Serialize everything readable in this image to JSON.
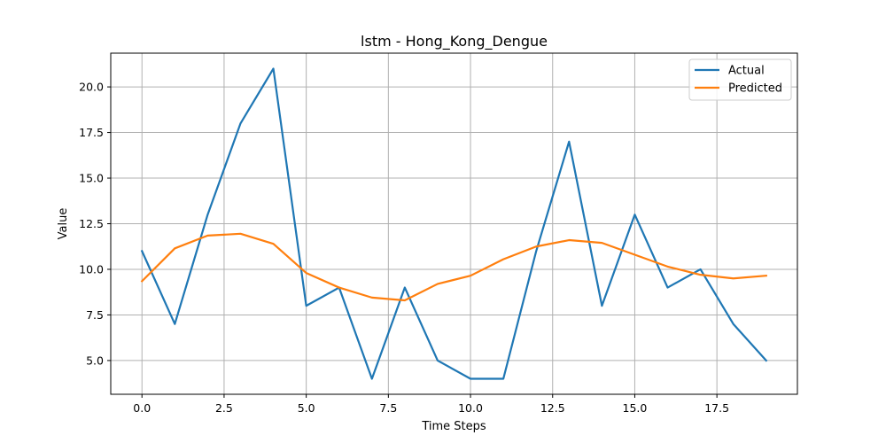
{
  "chart_data": {
    "type": "line",
    "title": "lstm - Hong_Kong_Dengue",
    "xlabel": "Time Steps",
    "ylabel": "Value",
    "xlim": [
      -0.95,
      19.95
    ],
    "ylim": [
      3.15,
      21.85
    ],
    "x_ticks": [
      0.0,
      2.5,
      5.0,
      7.5,
      10.0,
      12.5,
      15.0,
      17.5
    ],
    "x_tick_labels": [
      "0.0",
      "2.5",
      "5.0",
      "7.5",
      "10.0",
      "12.5",
      "15.0",
      "17.5"
    ],
    "y_ticks": [
      5.0,
      7.5,
      10.0,
      12.5,
      15.0,
      17.5,
      20.0
    ],
    "y_tick_labels": [
      "5.0",
      "7.5",
      "10.0",
      "12.5",
      "15.0",
      "17.5",
      "20.0"
    ],
    "grid": true,
    "legend_position": "top-right",
    "x": [
      0,
      1,
      2,
      3,
      4,
      5,
      6,
      7,
      8,
      9,
      10,
      11,
      12,
      13,
      14,
      15,
      16,
      17,
      18,
      19
    ],
    "series": [
      {
        "name": "Actual",
        "color": "#1f77b4",
        "values": [
          11,
          7,
          13,
          18,
          21,
          8,
          9,
          4,
          9,
          5,
          4,
          4,
          11,
          17,
          8,
          13,
          9,
          10,
          7,
          5
        ]
      },
      {
        "name": "Predicted",
        "color": "#ff7f0e",
        "values": [
          9.35,
          11.15,
          11.85,
          11.95,
          11.4,
          9.8,
          9.0,
          8.45,
          8.3,
          9.2,
          9.65,
          10.55,
          11.25,
          11.6,
          11.45,
          10.8,
          10.15,
          9.7,
          9.5,
          9.65
        ]
      }
    ]
  }
}
